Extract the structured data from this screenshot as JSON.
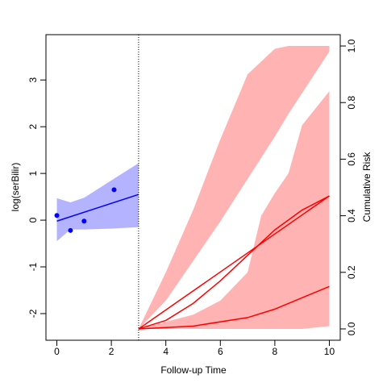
{
  "chart_data": {
    "type": "line",
    "xlabel": "Follow-up Time",
    "ylabel": "log(serBilir)",
    "y2label": "Cumulative Risk",
    "xlim": [
      -0.4,
      10.4
    ],
    "ylim": [
      -2.57,
      3.97
    ],
    "y2lim": [
      -0.04,
      1.04
    ],
    "xticks": [
      0,
      2,
      4,
      6,
      8,
      10
    ],
    "yticks": [
      -2,
      -1,
      0,
      1,
      2,
      3
    ],
    "y2ticks": [
      {
        "value": 0,
        "label": "0.0"
      },
      0.2,
      0.4,
      0.6,
      0.8,
      {
        "value": 1,
        "label": "1.0"
      }
    ],
    "vline": 3,
    "series": [
      {
        "style": "band",
        "color": "#b3b3ff",
        "x": [
          0,
          0.5,
          1,
          2,
          3
        ],
        "upper": [
          0.47,
          0.38,
          0.48,
          0.85,
          1.22
        ],
        "lower": [
          -0.45,
          -0.2,
          -0.2,
          -0.18,
          -0.15
        ]
      },
      {
        "style": "line",
        "color": "#0000ff",
        "x": [
          0,
          3
        ],
        "values": [
          -0.02,
          0.55
        ]
      },
      {
        "style": "points",
        "color": "#0000ff",
        "x": [
          0,
          0.5,
          1,
          2.1
        ],
        "values": [
          0.1,
          -0.22,
          -0.02,
          0.65
        ]
      },
      {
        "style": "band",
        "axis": "y2",
        "color": "#ffb3b3",
        "x": [
          3,
          4,
          5,
          6,
          7,
          8,
          8.5,
          10
        ],
        "upper": [
          0,
          0.2,
          0.42,
          0.67,
          0.9,
          0.99,
          1.0,
          1.0
        ],
        "lower": [
          0,
          0.1,
          0.24,
          0.38,
          0.53,
          0.68,
          0.76,
          0.98
        ]
      },
      {
        "style": "band",
        "axis": "y2",
        "color": "#ffb3b3",
        "x": [
          3,
          5,
          6,
          7,
          7.5,
          8,
          8.5,
          9,
          10
        ],
        "upper": [
          0,
          0.05,
          0.1,
          0.2,
          0.4,
          0.48,
          0.55,
          0.72,
          0.84
        ],
        "lower": [
          0,
          0,
          0,
          0,
          0,
          0,
          0,
          0,
          0.01
        ]
      },
      {
        "style": "line",
        "axis": "y2",
        "color": "#ff0000",
        "x": [
          3,
          10
        ],
        "values": [
          0,
          0.47
        ]
      },
      {
        "style": "line",
        "axis": "y2",
        "color": "#ff0000",
        "x": [
          3,
          4,
          5,
          6,
          7,
          8,
          9,
          10
        ],
        "values": [
          0,
          0.03,
          0.09,
          0.17,
          0.26,
          0.35,
          0.42,
          0.47
        ]
      },
      {
        "style": "line",
        "axis": "y2",
        "color": "#ff0000",
        "x": [
          3,
          5,
          7,
          8,
          9,
          10
        ],
        "values": [
          0,
          0.01,
          0.04,
          0.07,
          0.11,
          0.15
        ]
      }
    ]
  }
}
